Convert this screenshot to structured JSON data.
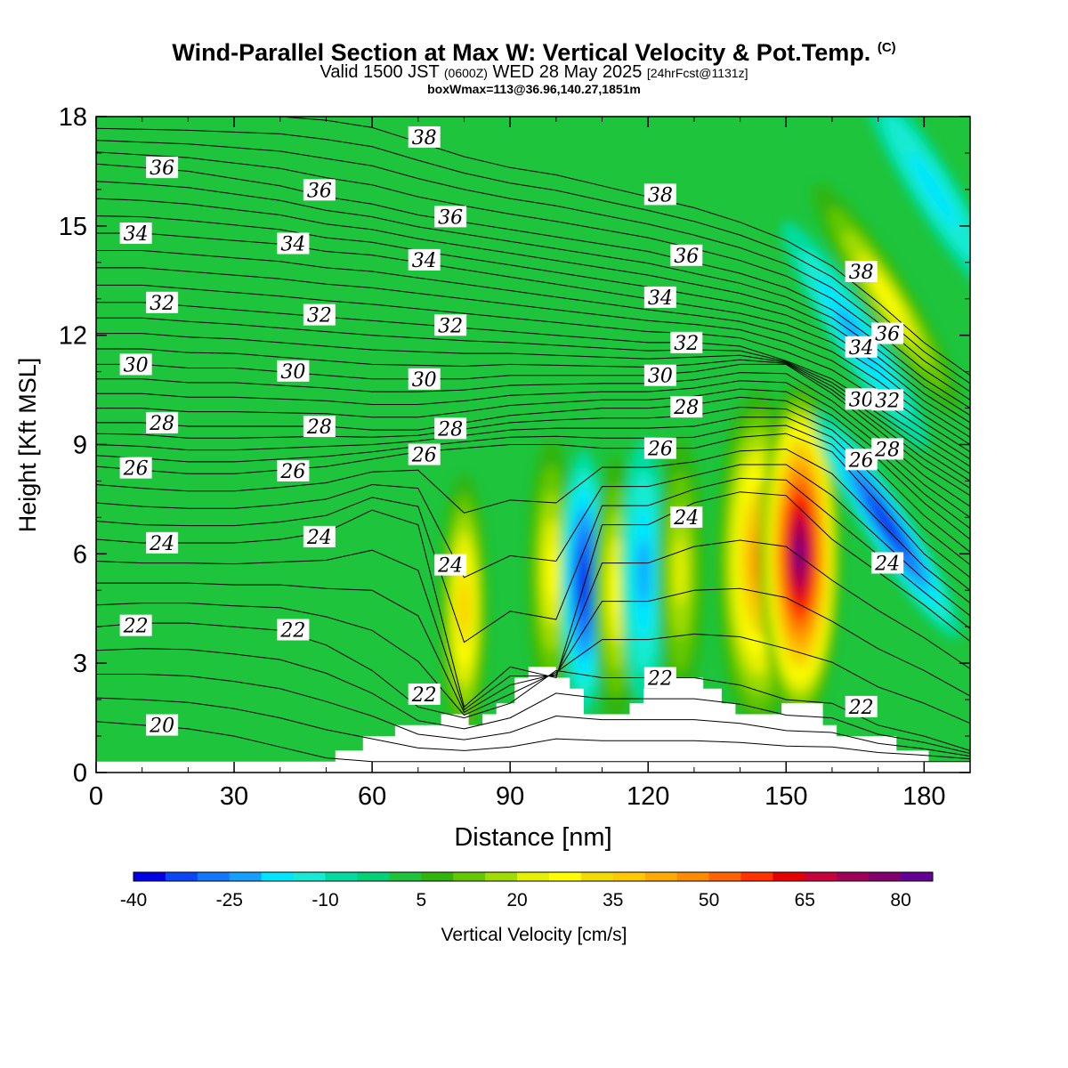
{
  "title": {
    "main": "Wind-Parallel Section at Max W: Vertical Velocity & Pot.Temp.",
    "copyright": "(C)",
    "valid_prefix": "Valid 1500 JST",
    "valid_utc": "(0600Z)",
    "valid_date": "WED 28 May 2025",
    "forecast": "[24hrFcst@1131z]",
    "boxwmax": "boxWmax=113@36.96,140.27,1851m"
  },
  "colors": {
    "background_field": "#1ec43c",
    "terrain": "#ffffff",
    "contour": "#000000"
  },
  "chart_data": {
    "type": "heatmap",
    "xlabel": "Distance [nm]",
    "ylabel": "Height [Kft MSL]",
    "xlim": [
      0,
      190
    ],
    "ylim": [
      0,
      18
    ],
    "xticks": [
      "0",
      "30",
      "60",
      "90",
      "120",
      "150",
      "180"
    ],
    "yticks": [
      "0",
      "3",
      "6",
      "9",
      "12",
      "15",
      "18"
    ],
    "colorbar": {
      "label": "Vertical Velocity [cm/s]",
      "levels": [
        -40,
        -35,
        -30,
        -25,
        -20,
        -15,
        -10,
        -5,
        0,
        5,
        10,
        15,
        20,
        25,
        30,
        35,
        40,
        45,
        50,
        55,
        60,
        65,
        70,
        75,
        80,
        85
      ],
      "tick_labels": [
        "-40",
        "-25",
        "-10",
        "5",
        "20",
        "35",
        "50",
        "65",
        "80"
      ],
      "colors": [
        "#0000e6",
        "#0a46f5",
        "#1478ff",
        "#14a0ff",
        "#00e6ff",
        "#14ebd2",
        "#00dca0",
        "#00d278",
        "#1ec43c",
        "#32b40a",
        "#64c800",
        "#a0dc00",
        "#e6f000",
        "#ffff00",
        "#f0dc00",
        "#ffc800",
        "#ffaa00",
        "#ff8c00",
        "#ff6400",
        "#ff3200",
        "#e60000",
        "#c8003c",
        "#a0005a",
        "#82006e",
        "#640096"
      ]
    },
    "vertical_velocity_extremes": [
      {
        "x": 80,
        "z": 4.5,
        "w": 35
      },
      {
        "x": 99,
        "z": 5.5,
        "w": 25
      },
      {
        "x": 106,
        "z": 5.2,
        "w": -35
      },
      {
        "x": 113,
        "z": 5.0,
        "w": 25
      },
      {
        "x": 119,
        "z": 5.5,
        "w": -20
      },
      {
        "x": 127,
        "z": 5.5,
        "w": 20
      },
      {
        "x": 144,
        "z": 5.8,
        "w": 45
      },
      {
        "x": 153,
        "z": 6.0,
        "w": 80
      },
      {
        "x": 172,
        "z": 6.8,
        "w": -35
      },
      {
        "x": 165,
        "z": 12.0,
        "w": -20
      },
      {
        "x": 172,
        "z": 13.0,
        "w": 25
      },
      {
        "x": 182,
        "z": 16.0,
        "w": -15
      }
    ],
    "terrain_kft": [
      {
        "x": 0,
        "h": 0.3
      },
      {
        "x": 52,
        "h": 0.3
      },
      {
        "x": 52,
        "h": 0.6
      },
      {
        "x": 58,
        "h": 0.6
      },
      {
        "x": 58,
        "h": 1.0
      },
      {
        "x": 65,
        "h": 1.0
      },
      {
        "x": 65,
        "h": 1.3
      },
      {
        "x": 75,
        "h": 1.3
      },
      {
        "x": 75,
        "h": 1.6
      },
      {
        "x": 81,
        "h": 1.6
      },
      {
        "x": 81,
        "h": 1.3
      },
      {
        "x": 84,
        "h": 1.3
      },
      {
        "x": 84,
        "h": 1.6
      },
      {
        "x": 87,
        "h": 1.6
      },
      {
        "x": 87,
        "h": 1.9
      },
      {
        "x": 91,
        "h": 1.9
      },
      {
        "x": 91,
        "h": 2.6
      },
      {
        "x": 94,
        "h": 2.6
      },
      {
        "x": 94,
        "h": 2.9
      },
      {
        "x": 100,
        "h": 2.9
      },
      {
        "x": 100,
        "h": 2.6
      },
      {
        "x": 103,
        "h": 2.6
      },
      {
        "x": 103,
        "h": 2.3
      },
      {
        "x": 106,
        "h": 2.3
      },
      {
        "x": 106,
        "h": 1.6
      },
      {
        "x": 116,
        "h": 1.6
      },
      {
        "x": 116,
        "h": 1.9
      },
      {
        "x": 119,
        "h": 1.9
      },
      {
        "x": 119,
        "h": 2.3
      },
      {
        "x": 122,
        "h": 2.3
      },
      {
        "x": 122,
        "h": 2.6
      },
      {
        "x": 132,
        "h": 2.6
      },
      {
        "x": 132,
        "h": 2.3
      },
      {
        "x": 136,
        "h": 2.3
      },
      {
        "x": 136,
        "h": 1.9
      },
      {
        "x": 139,
        "h": 1.9
      },
      {
        "x": 139,
        "h": 1.6
      },
      {
        "x": 149,
        "h": 1.6
      },
      {
        "x": 149,
        "h": 1.9
      },
      {
        "x": 158,
        "h": 1.9
      },
      {
        "x": 158,
        "h": 1.3
      },
      {
        "x": 161,
        "h": 1.3
      },
      {
        "x": 161,
        "h": 1.0
      },
      {
        "x": 174,
        "h": 1.0
      },
      {
        "x": 174,
        "h": 0.6
      },
      {
        "x": 181,
        "h": 0.6
      },
      {
        "x": 181,
        "h": 0.3
      },
      {
        "x": 190,
        "h": 0.3
      }
    ],
    "theta_contours": [
      {
        "value": 20,
        "z": [
          1.4,
          1.3,
          1.2,
          1.0,
          0.7,
          0.4,
          0.3,
          0.3,
          0.3,
          0.3,
          0.3,
          0.3,
          0.3,
          0.3,
          0.3,
          0.3,
          0.3,
          0.3,
          0.3,
          0.3
        ]
      },
      {
        "value": 22,
        "z": [
          4.0,
          4.1,
          4.1,
          4.0,
          3.9,
          3.5,
          2.8,
          1.8,
          1.5,
          1.9,
          2.8,
          2.6,
          2.6,
          2.6,
          2.4,
          2.0,
          1.9,
          1.3,
          1.0,
          0.6
        ]
      },
      {
        "value": 24,
        "z": [
          6.4,
          6.3,
          6.3,
          6.3,
          6.4,
          6.6,
          7.2,
          6.8,
          1.8,
          2.9,
          2.6,
          6.8,
          6.8,
          7.4,
          7.7,
          7.6,
          6.4,
          5.5,
          4.6,
          3.6
        ]
      },
      {
        "value": 26,
        "z": [
          8.4,
          8.3,
          8.2,
          8.2,
          8.3,
          8.4,
          8.6,
          8.8,
          8.9,
          9.0,
          9.0,
          8.9,
          8.9,
          8.9,
          9.2,
          9.3,
          8.8,
          7.4,
          6.0,
          5.0
        ]
      },
      {
        "value": 28,
        "z": [
          9.6,
          9.6,
          9.5,
          9.5,
          9.5,
          9.5,
          9.4,
          9.4,
          9.6,
          9.8,
          9.9,
          10.0,
          10.0,
          10.1,
          10.3,
          10.2,
          9.6,
          8.6,
          7.4,
          6.4
        ]
      },
      {
        "value": 30,
        "z": [
          11.2,
          11.2,
          11.1,
          11.1,
          11.0,
          10.9,
          10.8,
          10.8,
          10.8,
          10.9,
          10.9,
          10.9,
          10.9,
          11.0,
          11.2,
          11.2,
          10.4,
          9.4,
          8.4,
          7.6
        ]
      },
      {
        "value": 32,
        "z": [
          12.9,
          12.9,
          12.8,
          12.7,
          12.6,
          12.5,
          12.4,
          12.3,
          12.2,
          12.1,
          12.0,
          11.9,
          11.8,
          11.8,
          11.7,
          11.3,
          10.8,
          10.0,
          9.2,
          8.4
        ]
      },
      {
        "value": 34,
        "z": [
          14.8,
          14.8,
          14.7,
          14.6,
          14.5,
          14.3,
          14.2,
          14.0,
          13.8,
          13.6,
          13.4,
          13.2,
          13.0,
          12.8,
          12.6,
          12.3,
          11.8,
          11.0,
          10.0,
          9.2
        ]
      },
      {
        "value": 36,
        "z": [
          16.7,
          16.6,
          16.5,
          16.3,
          16.1,
          15.8,
          15.6,
          15.3,
          15.1,
          14.9,
          14.7,
          14.5,
          14.3,
          14.0,
          13.7,
          13.3,
          12.7,
          11.8,
          10.8,
          10.0
        ]
      },
      {
        "value": 38,
        "z": [
          18.0,
          18.0,
          18.0,
          18.0,
          18.0,
          17.9,
          17.7,
          17.3,
          16.9,
          16.6,
          16.4,
          16.1,
          15.8,
          15.5,
          15.1,
          14.6,
          13.9,
          12.9,
          11.8,
          10.9
        ]
      }
    ]
  }
}
